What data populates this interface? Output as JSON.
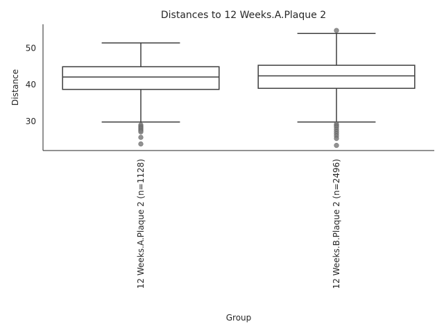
{
  "chart_data": {
    "type": "box",
    "title": "Distances to 12 Weeks.A.Plaque 2",
    "xlabel": "Group",
    "ylabel": "Distance",
    "ylim": [
      22,
      56.5
    ],
    "yticks": [
      30,
      40,
      50
    ],
    "grid": false,
    "categories": [
      "12 Weeks.A.Plaque 2 (n=1128)",
      "12 Weeks.B.Plaque 2 (n=2496)"
    ],
    "boxes": [
      {
        "name": "12 Weeks.A.Plaque 2 (n=1128)",
        "whisker_low": 29.8,
        "q1": 38.7,
        "median": 42.1,
        "q3": 44.9,
        "whisker_high": 51.4,
        "fliers": [
          29.0,
          28.6,
          28.3,
          28.0,
          27.7,
          27.4,
          27.1,
          25.6,
          23.8
        ]
      },
      {
        "name": "12 Weeks.B.Plaque 2 (n=2496)",
        "whisker_low": 29.8,
        "q1": 39.0,
        "median": 42.4,
        "q3": 45.3,
        "whisker_high": 54.0,
        "fliers": [
          54.8,
          29.2,
          28.8,
          28.4,
          27.8,
          27.2,
          26.6,
          26.0,
          25.3,
          23.4
        ]
      }
    ]
  }
}
